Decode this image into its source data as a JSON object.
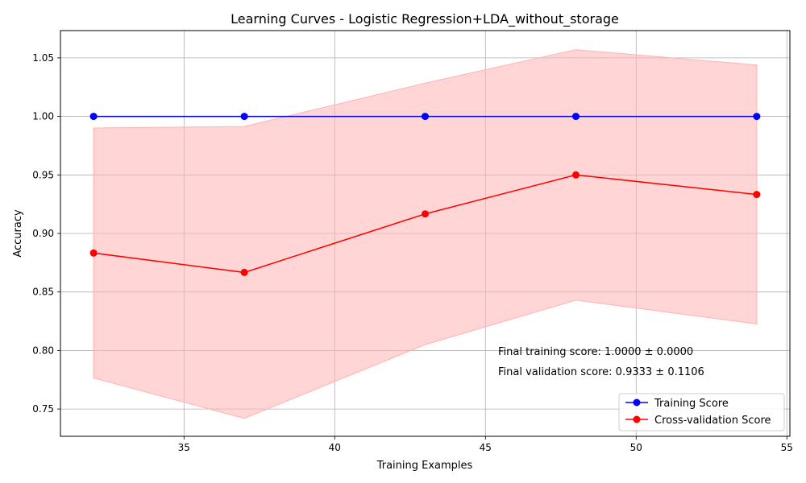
{
  "chart_data": {
    "type": "line",
    "title": "Learning Curves - Logistic Regression+LDA_without_storage",
    "xlabel": "Training Examples",
    "ylabel": "Accuracy",
    "xlim": [
      30.9,
      55.1
    ],
    "ylim": [
      0.7267,
      1.0733
    ],
    "x_ticks": [
      35,
      40,
      45,
      50,
      55
    ],
    "y_ticks": [
      0.75,
      0.8,
      0.85,
      0.9,
      0.95,
      1.0,
      1.05
    ],
    "x": [
      32,
      37,
      43,
      48,
      54
    ],
    "grid": true,
    "legend_position": "lower right",
    "series": [
      {
        "name": "Training Score",
        "color": "#0000ff",
        "marker": "circle",
        "values": [
          1.0,
          1.0,
          1.0,
          1.0,
          1.0
        ]
      },
      {
        "name": "Cross-validation Score",
        "color": "#ff0000",
        "marker": "circle",
        "values": [
          0.8833,
          0.8667,
          0.9167,
          0.95,
          0.9333
        ],
        "band_lower": [
          0.7765,
          0.742,
          0.805,
          0.843,
          0.8227
        ],
        "band_upper": [
          0.9901,
          0.9914,
          1.0284,
          1.057,
          1.0439
        ],
        "band_color": "#ffb3b3"
      }
    ],
    "annotations": [
      "Final training score: 1.0000 ± 0.0000",
      "Final validation score: 0.9333 ± 0.1106"
    ]
  }
}
